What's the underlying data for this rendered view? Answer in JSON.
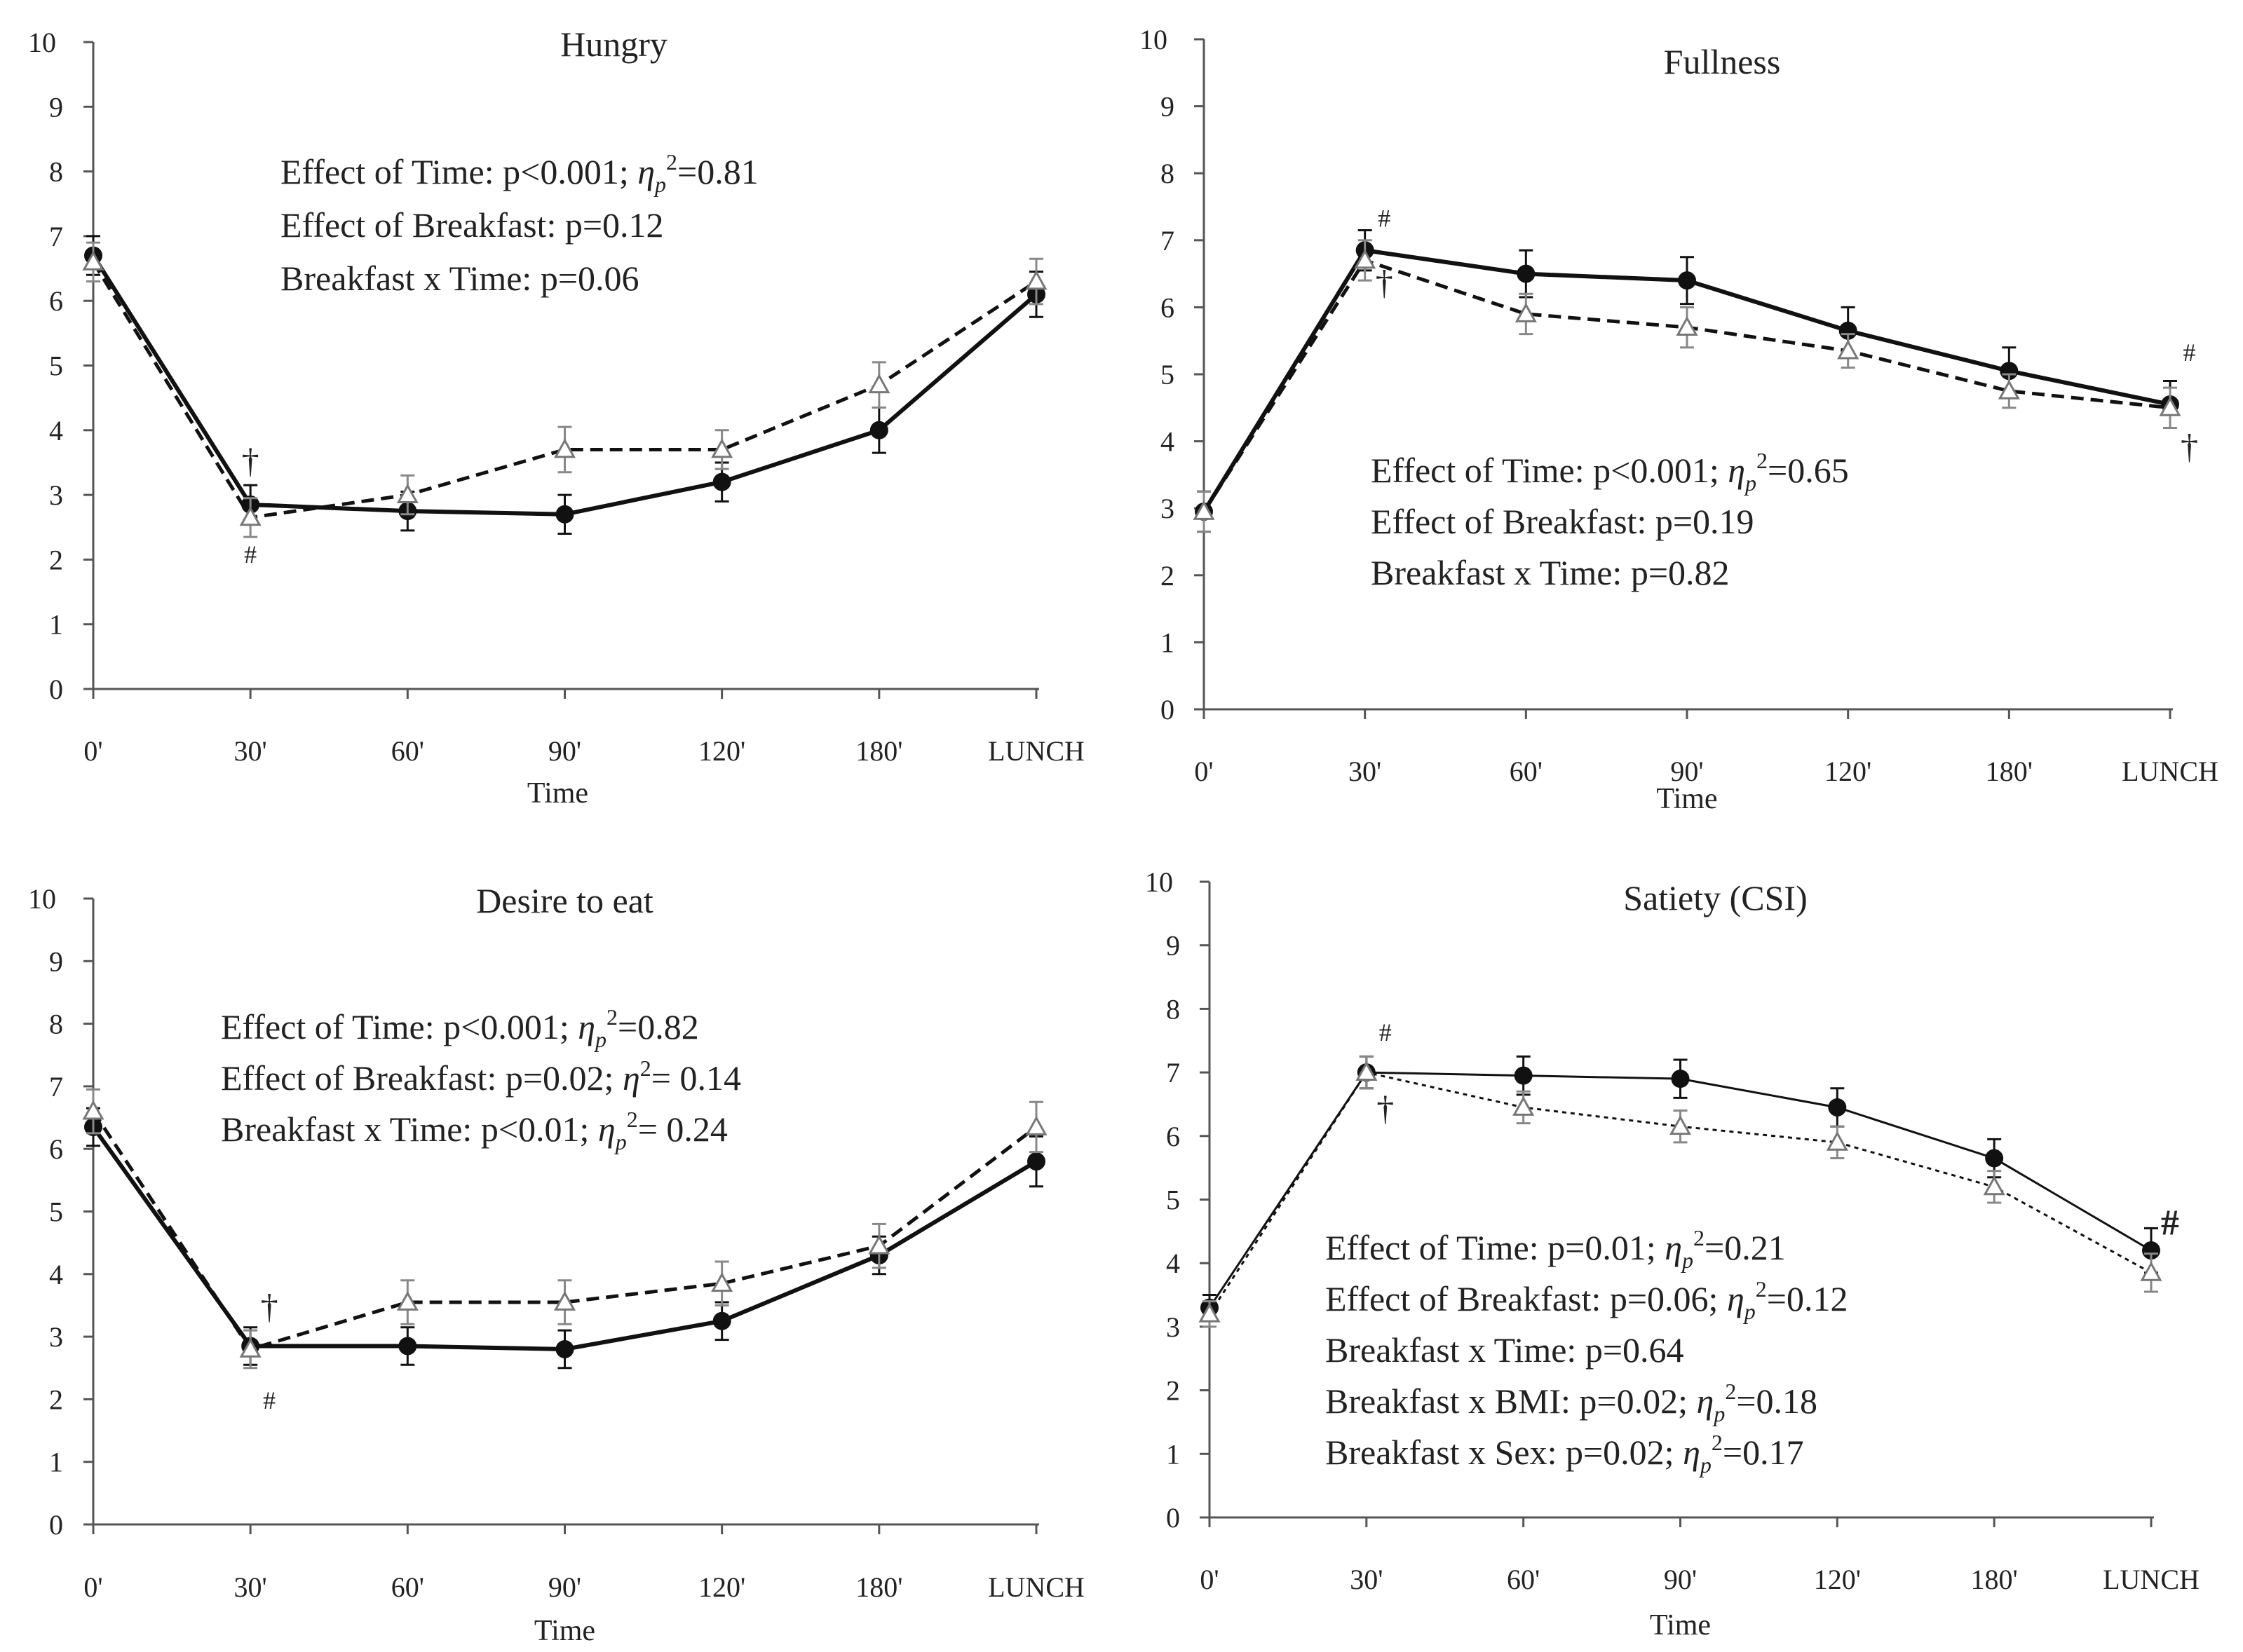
{
  "figure": {
    "categories": [
      "0'",
      "30'",
      "60'",
      "90'",
      "120'",
      "180'",
      "LUNCH"
    ],
    "xlabel": "Time",
    "ylim": [
      0,
      10
    ],
    "yticks": [
      0,
      1,
      2,
      3,
      4,
      5,
      6,
      7,
      8,
      9,
      10
    ]
  },
  "chart_data": [
    {
      "type": "line",
      "title": "Hungry",
      "xlabel": "Time",
      "ylabel": "",
      "ylim": [
        0,
        10
      ],
      "categories": [
        "0'",
        "30'",
        "60'",
        "90'",
        "120'",
        "180'",
        "LUNCH"
      ],
      "series": [
        {
          "name": "filled circle, solid line",
          "values": [
            6.7,
            2.85,
            2.75,
            2.7,
            3.2,
            4.0,
            6.1
          ],
          "errors": [
            0.3,
            0.3,
            0.3,
            0.3,
            0.3,
            0.35,
            0.35
          ]
        },
        {
          "name": "open triangle, dashed line",
          "values": [
            6.6,
            2.65,
            3.0,
            3.7,
            3.7,
            4.7,
            6.3
          ],
          "errors": [
            0.3,
            0.3,
            0.3,
            0.35,
            0.3,
            0.35,
            0.35
          ]
        }
      ],
      "stats": [
        {
          "pre": "Effect of Time: p<0.001; ",
          "eta": "η",
          "sub": "p",
          "sup": "2",
          "post": "=0.81"
        },
        {
          "pre": "Effect of Breakfast: p=0.12"
        },
        {
          "pre": "Breakfast x Time: p=0.06"
        }
      ],
      "annotations": [
        {
          "symbol": "†",
          "x": 1,
          "y": 3.35
        },
        {
          "symbol": "#",
          "x": 1,
          "y": 1.95
        }
      ]
    },
    {
      "type": "line",
      "title": "Fullness",
      "xlabel": "Time",
      "ylabel": "",
      "ylim": [
        0,
        10
      ],
      "categories": [
        "0'",
        "30'",
        "60'",
        "90'",
        "120'",
        "180'",
        "LUNCH"
      ],
      "series": [
        {
          "name": "filled circle, solid line",
          "values": [
            2.95,
            6.85,
            6.5,
            6.4,
            5.65,
            5.05,
            4.55
          ],
          "errors": [
            0.3,
            0.3,
            0.35,
            0.35,
            0.35,
            0.35,
            0.35
          ]
        },
        {
          "name": "open triangle, dashed line",
          "values": [
            2.95,
            6.7,
            5.9,
            5.7,
            5.35,
            4.75,
            4.5
          ],
          "errors": [
            0.3,
            0.3,
            0.3,
            0.3,
            0.25,
            0.25,
            0.3
          ]
        }
      ],
      "stats": [
        {
          "pre": "Effect of Time: p<0.001; ",
          "eta": "η",
          "sub": "p",
          "sup": "2",
          "post": "=0.65"
        },
        {
          "pre": "Effect of Breakfast: p=0.19"
        },
        {
          "pre": "Breakfast x Time:  p=0.82"
        }
      ],
      "annotations": [
        {
          "symbol": "#",
          "x": 1.12,
          "y": 7.2
        },
        {
          "symbol": "†",
          "x": 1.12,
          "y": 6.2
        },
        {
          "symbol": "#",
          "x": 6.12,
          "y": 5.2
        },
        {
          "symbol": "†",
          "x": 6.12,
          "y": 3.75
        }
      ]
    },
    {
      "type": "line",
      "title": "Desire to eat",
      "xlabel": "Time",
      "ylabel": "",
      "ylim": [
        0,
        10
      ],
      "categories": [
        "0'",
        "30'",
        "60'",
        "90'",
        "120'",
        "180'",
        "LUNCH"
      ],
      "series": [
        {
          "name": "filled circle, solid line",
          "values": [
            6.35,
            2.85,
            2.85,
            2.8,
            3.25,
            4.3,
            5.8
          ],
          "errors": [
            0.3,
            0.3,
            0.3,
            0.3,
            0.3,
            0.3,
            0.4
          ]
        },
        {
          "name": "open triangle, dashed line",
          "values": [
            6.6,
            2.8,
            3.55,
            3.55,
            3.85,
            4.45,
            6.35
          ],
          "errors": [
            0.35,
            0.3,
            0.35,
            0.35,
            0.35,
            0.35,
            0.4
          ]
        }
      ],
      "stats": [
        {
          "pre": "Effect of Time: p<0.001; ",
          "eta": "η",
          "sub": "p",
          "sup": "2",
          "post": "=0.82"
        },
        {
          "pre": "Effect of Breakfast: p=0.02; ",
          "eta": "η",
          "sub": "",
          "sup": "2",
          "post": "= 0.14"
        },
        {
          "pre": "Breakfast x Time: p<0.01; ",
          "eta": "η",
          "sub": "p",
          "sup": "2",
          "post": "= 0.24"
        }
      ],
      "annotations": [
        {
          "symbol": "†",
          "x": 1.12,
          "y": 3.3
        },
        {
          "symbol": "#",
          "x": 1.12,
          "y": 1.85
        }
      ]
    },
    {
      "type": "line",
      "title": "Satiety (CSI)",
      "xlabel": "Time",
      "ylabel": "",
      "ylim": [
        0,
        10
      ],
      "categories": [
        "0'",
        "30'",
        "60'",
        "90'",
        "120'",
        "180'",
        "LUNCH"
      ],
      "series": [
        {
          "name": "filled circle, thin solid line",
          "values": [
            3.3,
            7.0,
            6.95,
            6.9,
            6.45,
            5.65,
            4.2
          ],
          "errors": [
            0.2,
            0.25,
            0.3,
            0.3,
            0.3,
            0.3,
            0.35
          ]
        },
        {
          "name": "open triangle, dotted line",
          "values": [
            3.2,
            7.0,
            6.45,
            6.15,
            5.9,
            5.2,
            3.85
          ],
          "errors": [
            0.2,
            0.25,
            0.25,
            0.25,
            0.25,
            0.25,
            0.3
          ]
        }
      ],
      "stats": [
        {
          "pre": "Effect of Time: p=0.01; ",
          "eta": "η",
          "sub": "p",
          "sup": "2",
          "post": "=0.21"
        },
        {
          "pre": "Effect of Breakfast: p=0.06; ",
          "eta": "η",
          "sub": "p",
          "sup": "2",
          "post": "=0.12"
        },
        {
          "pre": "Breakfast x Time: p=0.64"
        },
        {
          "pre": "Breakfast x BMI:  p=0.02; ",
          "eta": "η",
          "sub": "p",
          "sup": "2",
          "post": "=0.18"
        },
        {
          "pre": "Breakfast x Sex: p=0.02; ",
          "eta": "η",
          "sub": "p",
          "sup": "2",
          "post": "=0.17"
        }
      ],
      "annotations": [
        {
          "symbol": "#",
          "x": 1.12,
          "y": 7.5
        },
        {
          "symbol": "†",
          "x": 1.12,
          "y": 6.25
        },
        {
          "symbol": "#",
          "x": 6.12,
          "y": 4.45
        }
      ]
    }
  ]
}
